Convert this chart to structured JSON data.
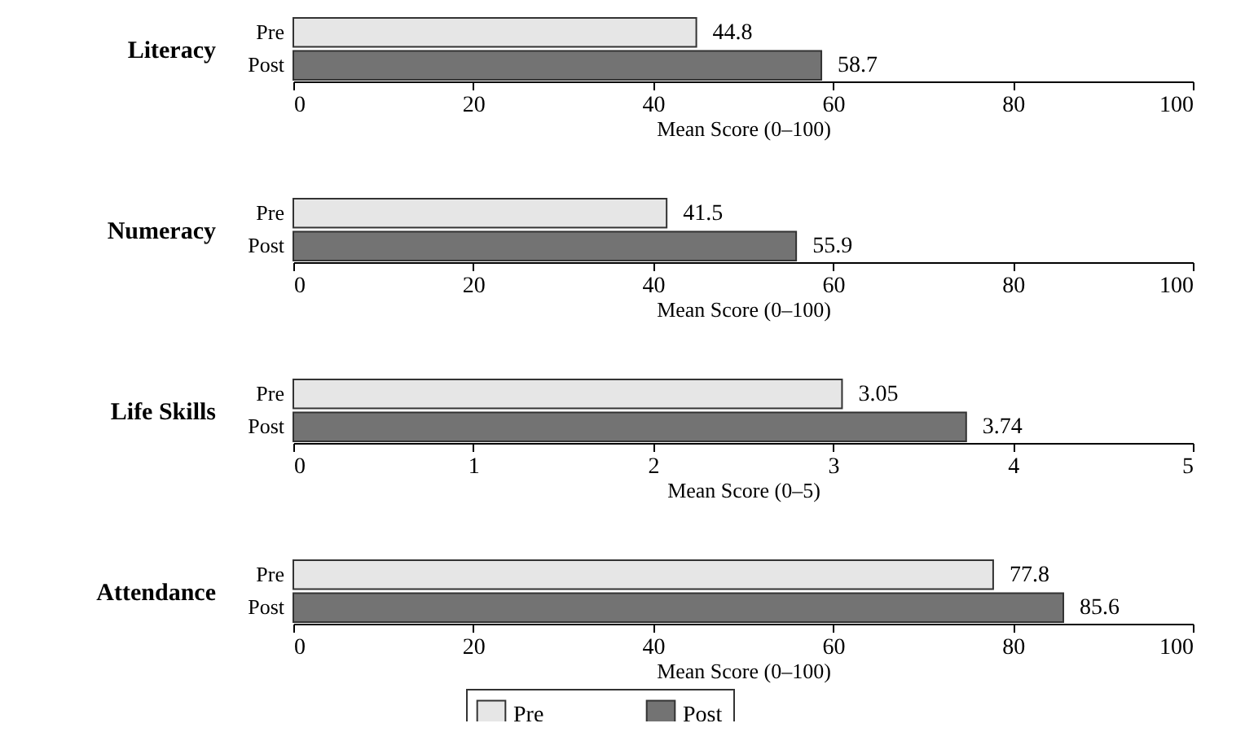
{
  "chart_data": [
    {
      "type": "bar",
      "orientation": "horizontal",
      "ylabel": "Literacy",
      "xlabel": "Mean Score (0–100)",
      "categories": [
        "Pre",
        "Post"
      ],
      "values": [
        44.8,
        58.7
      ],
      "colors": [
        "#e6e6e6",
        "#737373"
      ],
      "xlim": [
        0,
        100
      ],
      "xticks": [
        0,
        20,
        40,
        60,
        80,
        100
      ],
      "data_labels": true
    },
    {
      "type": "bar",
      "orientation": "horizontal",
      "ylabel": "Numeracy",
      "xlabel": "Mean Score (0–100)",
      "categories": [
        "Pre",
        "Post"
      ],
      "values": [
        41.5,
        55.9
      ],
      "colors": [
        "#e6e6e6",
        "#737373"
      ],
      "xlim": [
        0,
        100
      ],
      "xticks": [
        0,
        20,
        40,
        60,
        80,
        100
      ],
      "data_labels": true
    },
    {
      "type": "bar",
      "orientation": "horizontal",
      "ylabel": "Life Skills",
      "xlabel": "Mean Score (0–5)",
      "categories": [
        "Pre",
        "Post"
      ],
      "values": [
        3.05,
        3.74
      ],
      "colors": [
        "#e6e6e6",
        "#737373"
      ],
      "xlim": [
        0,
        5
      ],
      "xticks": [
        0,
        1,
        2,
        3,
        4,
        5
      ],
      "data_labels": true
    },
    {
      "type": "bar",
      "orientation": "horizontal",
      "ylabel": "Attendance",
      "xlabel": "Mean Score (0–100)",
      "categories": [
        "Pre",
        "Post"
      ],
      "series": [
        {
          "name": "Pre",
          "color": "#e6e6e6",
          "values": [
            77.8,
            null
          ]
        },
        {
          "name": "Post",
          "color": "#737373",
          "values": [
            null,
            85.6
          ]
        }
      ],
      "xlim": [
        0,
        100
      ],
      "xticks": [
        0,
        20,
        40,
        60,
        80,
        100
      ],
      "data_labels": true,
      "legend": "bottom"
    }
  ]
}
